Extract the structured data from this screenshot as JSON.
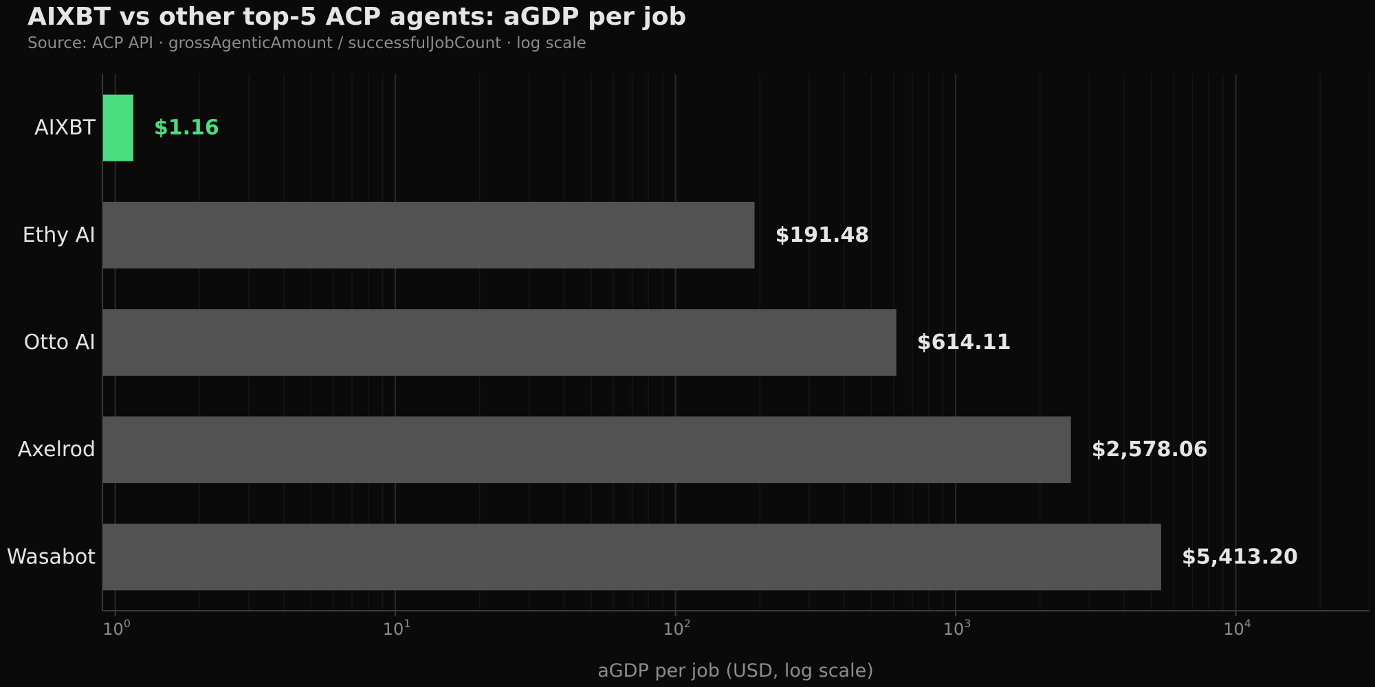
{
  "colors": {
    "background": "#0a0a0a",
    "highlight": "#4ade80",
    "bar": "#525252",
    "text": "#e5e5e5",
    "muted": "#8c8c8c"
  },
  "chart_data": {
    "type": "bar",
    "orientation": "horizontal",
    "title": "AIXBT vs other top-5 ACP agents: aGDP per job",
    "subtitle": "Source: ACP API · grossAgenticAmount / successfulJobCount · log scale",
    "xlabel": "aGDP per job (USD, log scale)",
    "x_scale": "log",
    "xlim": [
      0.9,
      30000
    ],
    "x_ticks": [
      {
        "value": 1,
        "base": "10",
        "exp": "0"
      },
      {
        "value": 10,
        "base": "10",
        "exp": "1"
      },
      {
        "value": 100,
        "base": "10",
        "exp": "2"
      },
      {
        "value": 1000,
        "base": "10",
        "exp": "3"
      },
      {
        "value": 10000,
        "base": "10",
        "exp": "4"
      }
    ],
    "grid": true,
    "categories": [
      "AIXBT",
      "Ethy AI",
      "Otto AI",
      "Axelrod",
      "Wasabot"
    ],
    "values": [
      1.16,
      191.48,
      614.11,
      2578.06,
      5413.2
    ],
    "data_labels": [
      "$1.16",
      "$191.48",
      "$614.11",
      "$2,578.06",
      "$5,413.20"
    ],
    "highlighted_category": "AIXBT"
  }
}
